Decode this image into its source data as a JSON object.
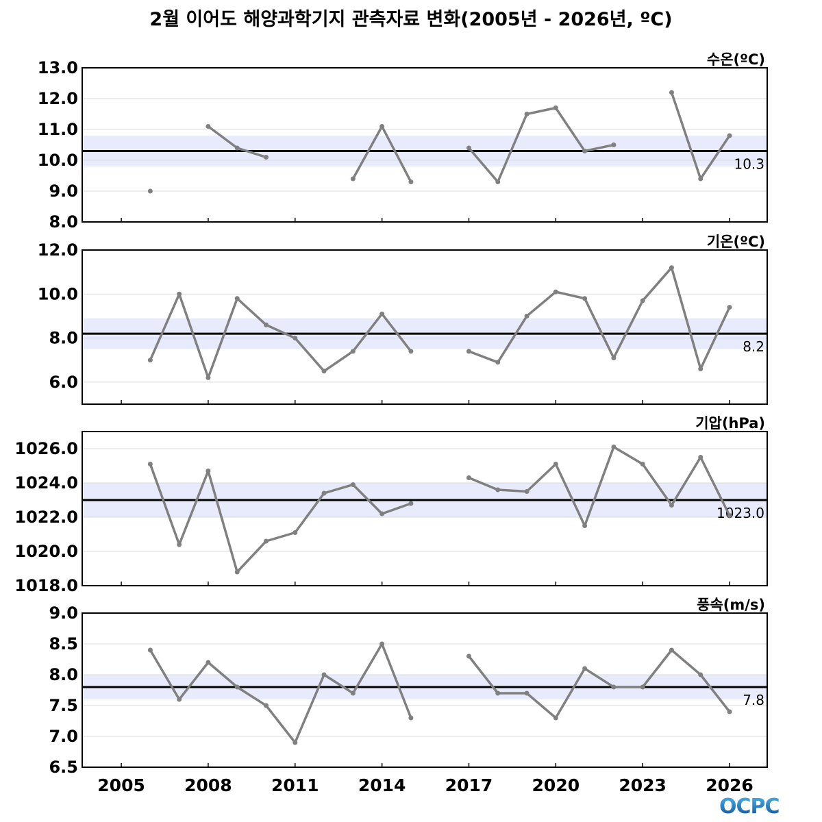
{
  "title": "2월 이어도 해양과학기지 관측자료 변화(2005년 - 2026년, ºC)",
  "logo_text": "OCPC",
  "colors": {
    "line": "#808080",
    "mean": "#000000",
    "band": "#e8ebfb",
    "grid": "#d9d9d9"
  },
  "chart_data": [
    {
      "type": "line",
      "label": "수온(ºC)",
      "ylim": [
        8,
        13
      ],
      "yticks": [
        8,
        9,
        10,
        11,
        12,
        13
      ],
      "tick_decimals": 1,
      "mean": 10.3,
      "mean_label": "10.3",
      "band": [
        9.8,
        10.8
      ],
      "x": [
        2006,
        2007,
        2008,
        2009,
        2010,
        2011,
        2012,
        2013,
        2014,
        2015,
        2016,
        2017,
        2018,
        2019,
        2020,
        2021,
        2022,
        2023,
        2024,
        2025,
        2026
      ],
      "values": [
        9.0,
        null,
        11.1,
        10.4,
        10.1,
        null,
        null,
        9.4,
        11.1,
        9.3,
        null,
        10.4,
        9.3,
        11.5,
        11.7,
        10.3,
        10.5,
        null,
        12.2,
        9.4,
        10.8
      ]
    },
    {
      "type": "line",
      "label": "기온(ºC)",
      "ylim": [
        5,
        12
      ],
      "yticks": [
        6,
        8,
        10,
        12
      ],
      "tick_decimals": 1,
      "mean": 8.2,
      "mean_label": "8.2",
      "band": [
        7.5,
        8.9
      ],
      "x": [
        2006,
        2007,
        2008,
        2009,
        2010,
        2011,
        2012,
        2013,
        2014,
        2015,
        2016,
        2017,
        2018,
        2019,
        2020,
        2021,
        2022,
        2023,
        2024,
        2025,
        2026
      ],
      "values": [
        7.0,
        10.0,
        6.2,
        9.8,
        8.6,
        8.0,
        6.5,
        7.4,
        9.1,
        7.4,
        null,
        7.4,
        6.9,
        9.0,
        10.1,
        9.8,
        7.1,
        9.7,
        11.2,
        6.6,
        9.4
      ]
    },
    {
      "type": "line",
      "label": "기압(hPa)",
      "ylim": [
        1018,
        1027
      ],
      "yticks": [
        1018,
        1020,
        1022,
        1024,
        1026
      ],
      "tick_decimals": 1,
      "mean": 1023.0,
      "mean_label": "1023.0",
      "band": [
        1022.0,
        1024.0
      ],
      "x": [
        2006,
        2007,
        2008,
        2009,
        2010,
        2011,
        2012,
        2013,
        2014,
        2015,
        2016,
        2017,
        2018,
        2019,
        2020,
        2021,
        2022,
        2023,
        2024,
        2025,
        2026
      ],
      "values": [
        1025.1,
        1020.4,
        1024.7,
        1018.8,
        1020.6,
        1021.1,
        1023.4,
        1023.9,
        1022.2,
        1022.8,
        null,
        1024.3,
        1023.6,
        1023.5,
        1025.1,
        1021.5,
        1026.1,
        1025.1,
        1022.7,
        1025.5,
        1022.1
      ]
    },
    {
      "type": "line",
      "label": "풍속(m/s)",
      "ylim": [
        6.5,
        9.0
      ],
      "yticks": [
        6.5,
        7.0,
        7.5,
        8.0,
        8.5,
        9.0
      ],
      "tick_decimals": 1,
      "mean": 7.8,
      "mean_label": "7.8",
      "band": [
        7.6,
        8.0
      ],
      "x": [
        2006,
        2007,
        2008,
        2009,
        2010,
        2011,
        2012,
        2013,
        2014,
        2015,
        2016,
        2017,
        2018,
        2019,
        2020,
        2021,
        2022,
        2023,
        2024,
        2025,
        2026
      ],
      "values": [
        8.4,
        7.6,
        8.2,
        7.8,
        7.5,
        6.9,
        8.0,
        7.7,
        8.5,
        7.3,
        null,
        8.3,
        7.7,
        7.7,
        7.3,
        8.1,
        7.8,
        7.8,
        8.4,
        8.0,
        7.4
      ]
    }
  ],
  "xaxis": {
    "xlim": [
      2003.65,
      2027.3
    ],
    "ticks": [
      "2005",
      "2008",
      "2011",
      "2014",
      "2017",
      "2020",
      "2023",
      "2026"
    ]
  }
}
